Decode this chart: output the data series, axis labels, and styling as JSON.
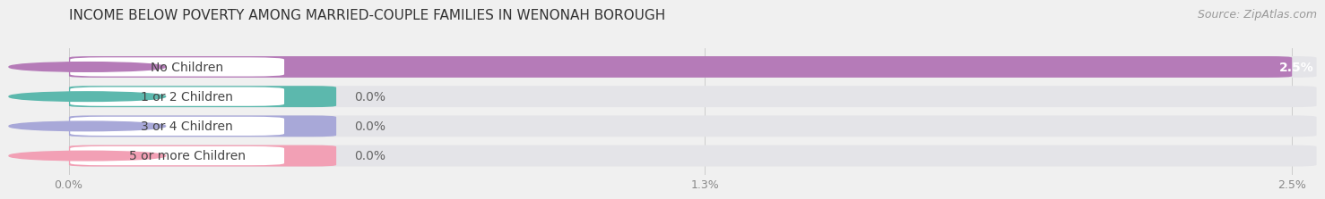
{
  "title": "INCOME BELOW POVERTY AMONG MARRIED-COUPLE FAMILIES IN WENONAH BOROUGH",
  "source": "Source: ZipAtlas.com",
  "categories": [
    "No Children",
    "1 or 2 Children",
    "3 or 4 Children",
    "5 or more Children"
  ],
  "values": [
    2.5,
    0.0,
    0.0,
    0.0
  ],
  "bar_colors": [
    "#b57bb8",
    "#5cb8ad",
    "#a8a8d8",
    "#f2a0b5"
  ],
  "value_labels": [
    "2.5%",
    "0.0%",
    "0.0%",
    "0.0%"
  ],
  "xmax": 2.5,
  "xticks": [
    0.0,
    1.3,
    2.5
  ],
  "xtick_labels": [
    "0.0%",
    "1.3%",
    "2.5%"
  ],
  "background_color": "#f0f0f0",
  "row_bg_color": "#e4e4e8",
  "row_white_color": "#ffffff",
  "title_fontsize": 11,
  "source_fontsize": 9,
  "label_fontsize": 10,
  "value_fontsize": 10,
  "tick_fontsize": 9
}
